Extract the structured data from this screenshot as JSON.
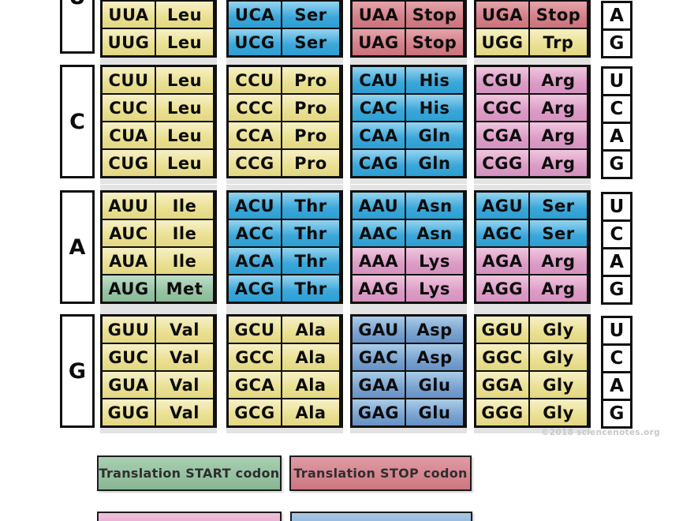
{
  "watermark": "©2018 sciencenotes.org",
  "colors": {
    "cell_yellow": "#ece49f",
    "cell_cyan": "#55b2dd",
    "cell_pink": "#e2aacd",
    "cell_red": "#d8888f",
    "cell_green": "#a2cbac",
    "cell_steel_blue": "#7da6d2",
    "panel_gray": "#e3e3e3",
    "border_black": "#101010"
  },
  "legend": {
    "items": [
      {
        "label": "Translation START codon",
        "color_key": "green"
      },
      {
        "label": "Translation STOP codon",
        "color_key": "red"
      },
      {
        "label": "",
        "color_key": "pink"
      },
      {
        "label": "",
        "color_key": "steel"
      }
    ]
  },
  "table": {
    "sections": [
      {
        "label": "U",
        "letters": [
          "A",
          "G"
        ],
        "groups": [
          {
            "rows": [
              {
                "codon": "UUA",
                "amino": "Leu",
                "color": "yellow"
              },
              {
                "codon": "UUG",
                "amino": "Leu",
                "color": "yellow"
              }
            ]
          },
          {
            "rows": [
              {
                "codon": "UCA",
                "amino": "Ser",
                "color": "cyan"
              },
              {
                "codon": "UCG",
                "amino": "Ser",
                "color": "cyan"
              }
            ]
          },
          {
            "rows": [
              {
                "codon": "UAA",
                "amino": "Stop",
                "color": "red"
              },
              {
                "codon": "UAG",
                "amino": "Stop",
                "color": "red"
              }
            ]
          },
          {
            "rows": [
              {
                "codon": "UGA",
                "amino": "Stop",
                "color": "red"
              },
              {
                "codon": "UGG",
                "amino": "Trp",
                "color": "yellow"
              }
            ]
          }
        ]
      },
      {
        "label": "C",
        "letters": [
          "U",
          "C",
          "A",
          "G"
        ],
        "groups": [
          {
            "rows": [
              {
                "codon": "CUU",
                "amino": "Leu",
                "color": "yellow"
              },
              {
                "codon": "CUC",
                "amino": "Leu",
                "color": "yellow"
              },
              {
                "codon": "CUA",
                "amino": "Leu",
                "color": "yellow"
              },
              {
                "codon": "CUG",
                "amino": "Leu",
                "color": "yellow"
              }
            ]
          },
          {
            "rows": [
              {
                "codon": "CCU",
                "amino": "Pro",
                "color": "yellow"
              },
              {
                "codon": "CCC",
                "amino": "Pro",
                "color": "yellow"
              },
              {
                "codon": "CCA",
                "amino": "Pro",
                "color": "yellow"
              },
              {
                "codon": "CCG",
                "amino": "Pro",
                "color": "yellow"
              }
            ]
          },
          {
            "rows": [
              {
                "codon": "CAU",
                "amino": "His",
                "color": "cyan"
              },
              {
                "codon": "CAC",
                "amino": "His",
                "color": "cyan"
              },
              {
                "codon": "CAA",
                "amino": "Gln",
                "color": "cyan"
              },
              {
                "codon": "CAG",
                "amino": "Gln",
                "color": "cyan"
              }
            ]
          },
          {
            "rows": [
              {
                "codon": "CGU",
                "amino": "Arg",
                "color": "pink"
              },
              {
                "codon": "CGC",
                "amino": "Arg",
                "color": "pink"
              },
              {
                "codon": "CGA",
                "amino": "Arg",
                "color": "pink"
              },
              {
                "codon": "CGG",
                "amino": "Arg",
                "color": "pink"
              }
            ]
          }
        ]
      },
      {
        "label": "A",
        "letters": [
          "U",
          "C",
          "A",
          "G"
        ],
        "groups": [
          {
            "rows": [
              {
                "codon": "AUU",
                "amino": "Ile",
                "color": "yellow"
              },
              {
                "codon": "AUC",
                "amino": "Ile",
                "color": "yellow"
              },
              {
                "codon": "AUA",
                "amino": "Ile",
                "color": "yellow"
              },
              {
                "codon": "AUG",
                "amino": "Met",
                "color": "green"
              }
            ]
          },
          {
            "rows": [
              {
                "codon": "ACU",
                "amino": "Thr",
                "color": "cyan"
              },
              {
                "codon": "ACC",
                "amino": "Thr",
                "color": "cyan"
              },
              {
                "codon": "ACA",
                "amino": "Thr",
                "color": "cyan"
              },
              {
                "codon": "ACG",
                "amino": "Thr",
                "color": "cyan"
              }
            ]
          },
          {
            "rows": [
              {
                "codon": "AAU",
                "amino": "Asn",
                "color": "cyan"
              },
              {
                "codon": "AAC",
                "amino": "Asn",
                "color": "cyan"
              },
              {
                "codon": "AAA",
                "amino": "Lys",
                "color": "pink"
              },
              {
                "codon": "AAG",
                "amino": "Lys",
                "color": "pink"
              }
            ]
          },
          {
            "rows": [
              {
                "codon": "AGU",
                "amino": "Ser",
                "color": "cyan"
              },
              {
                "codon": "AGC",
                "amino": "Ser",
                "color": "cyan"
              },
              {
                "codon": "AGA",
                "amino": "Arg",
                "color": "pink"
              },
              {
                "codon": "AGG",
                "amino": "Arg",
                "color": "pink"
              }
            ]
          }
        ]
      },
      {
        "label": "G",
        "letters": [
          "U",
          "C",
          "A",
          "G"
        ],
        "groups": [
          {
            "rows": [
              {
                "codon": "GUU",
                "amino": "Val",
                "color": "yellow"
              },
              {
                "codon": "GUC",
                "amino": "Val",
                "color": "yellow"
              },
              {
                "codon": "GUA",
                "amino": "Val",
                "color": "yellow"
              },
              {
                "codon": "GUG",
                "amino": "Val",
                "color": "yellow"
              }
            ]
          },
          {
            "rows": [
              {
                "codon": "GCU",
                "amino": "Ala",
                "color": "yellow"
              },
              {
                "codon": "GCC",
                "amino": "Ala",
                "color": "yellow"
              },
              {
                "codon": "GCA",
                "amino": "Ala",
                "color": "yellow"
              },
              {
                "codon": "GCG",
                "amino": "Ala",
                "color": "yellow"
              }
            ]
          },
          {
            "rows": [
              {
                "codon": "GAU",
                "amino": "Asp",
                "color": "steel"
              },
              {
                "codon": "GAC",
                "amino": "Asp",
                "color": "steel"
              },
              {
                "codon": "GAA",
                "amino": "Glu",
                "color": "steel"
              },
              {
                "codon": "GAG",
                "amino": "Glu",
                "color": "steel"
              }
            ]
          },
          {
            "rows": [
              {
                "codon": "GGU",
                "amino": "Gly",
                "color": "yellow"
              },
              {
                "codon": "GGC",
                "amino": "Gly",
                "color": "yellow"
              },
              {
                "codon": "GGA",
                "amino": "Gly",
                "color": "yellow"
              },
              {
                "codon": "GGG",
                "amino": "Gly",
                "color": "yellow"
              }
            ]
          }
        ]
      }
    ]
  }
}
